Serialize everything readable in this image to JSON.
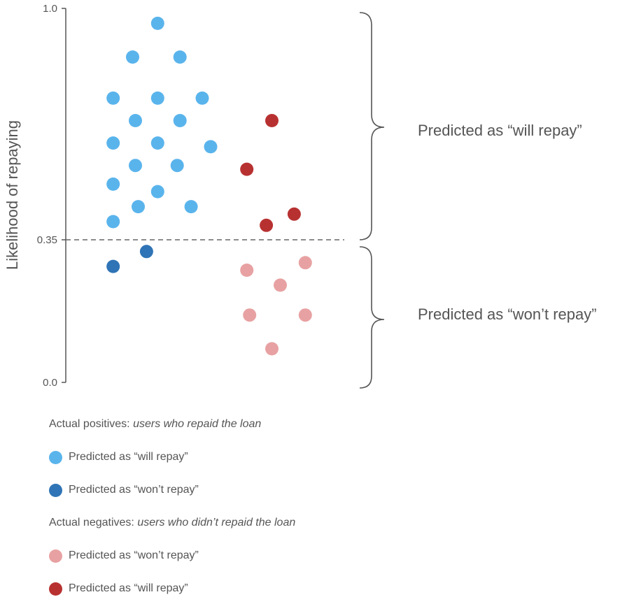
{
  "chart_data": {
    "type": "scatter",
    "ylabel": "Likelihood of repaying",
    "ylim": [
      0.0,
      1.0
    ],
    "yticks": [
      "1.0",
      "0.35",
      "0.0"
    ],
    "threshold": {
      "value": 0.35,
      "label": "0.35"
    },
    "series": [
      {
        "name": "Predicted as “will repay”",
        "group": "positives",
        "color": "#5ab4ec",
        "points": [
          {
            "x": 0.33,
            "y": 0.96
          },
          {
            "x": 0.24,
            "y": 0.87
          },
          {
            "x": 0.41,
            "y": 0.87
          },
          {
            "x": 0.17,
            "y": 0.76
          },
          {
            "x": 0.33,
            "y": 0.76
          },
          {
            "x": 0.49,
            "y": 0.76
          },
          {
            "x": 0.25,
            "y": 0.7
          },
          {
            "x": 0.41,
            "y": 0.7
          },
          {
            "x": 0.17,
            "y": 0.64
          },
          {
            "x": 0.33,
            "y": 0.64
          },
          {
            "x": 0.52,
            "y": 0.63
          },
          {
            "x": 0.25,
            "y": 0.58
          },
          {
            "x": 0.4,
            "y": 0.58
          },
          {
            "x": 0.17,
            "y": 0.53
          },
          {
            "x": 0.33,
            "y": 0.51
          },
          {
            "x": 0.26,
            "y": 0.47
          },
          {
            "x": 0.45,
            "y": 0.47
          },
          {
            "x": 0.17,
            "y": 0.43
          }
        ]
      },
      {
        "name": "Predicted as “won’t repay”",
        "group": "positives",
        "color": "#2f74b6",
        "points": [
          {
            "x": 0.29,
            "y": 0.35
          },
          {
            "x": 0.17,
            "y": 0.31
          }
        ]
      },
      {
        "name": "Predicted as “won’t repay”",
        "group": "negatives",
        "color": "#e8a1a2",
        "points": [
          {
            "x": 0.86,
            "y": 0.32
          },
          {
            "x": 0.65,
            "y": 0.3
          },
          {
            "x": 0.77,
            "y": 0.26
          },
          {
            "x": 0.66,
            "y": 0.18
          },
          {
            "x": 0.86,
            "y": 0.18
          },
          {
            "x": 0.74,
            "y": 0.09
          }
        ]
      },
      {
        "name": "Predicted as “will repay”",
        "group": "negatives",
        "color": "#b83131",
        "points": [
          {
            "x": 0.74,
            "y": 0.7
          },
          {
            "x": 0.65,
            "y": 0.57
          },
          {
            "x": 0.82,
            "y": 0.45
          },
          {
            "x": 0.72,
            "y": 0.42
          }
        ]
      }
    ],
    "brace_labels": {
      "upper": "Predicted as “will repay”",
      "lower": "Predicted as “won’t repay”"
    }
  },
  "legend": {
    "positives_heading": "Actual positives:",
    "positives_heading_em": "users who repaid the loan",
    "negatives_heading": "Actual negatives:",
    "negatives_heading_em": "users who didn’t repaid the loan",
    "items": [
      {
        "label": "Predicted as “will repay”",
        "color": "#5ab4ec"
      },
      {
        "label": "Predicted as “won’t repay”",
        "color": "#2f74b6"
      },
      {
        "label": "Predicted as “won’t repay”",
        "color": "#e8a1a2"
      },
      {
        "label": "Predicted as “will repay”",
        "color": "#b83131"
      }
    ]
  },
  "colors": {
    "axis": "#555555",
    "text": "#555555",
    "threshold_line": "#666666"
  }
}
